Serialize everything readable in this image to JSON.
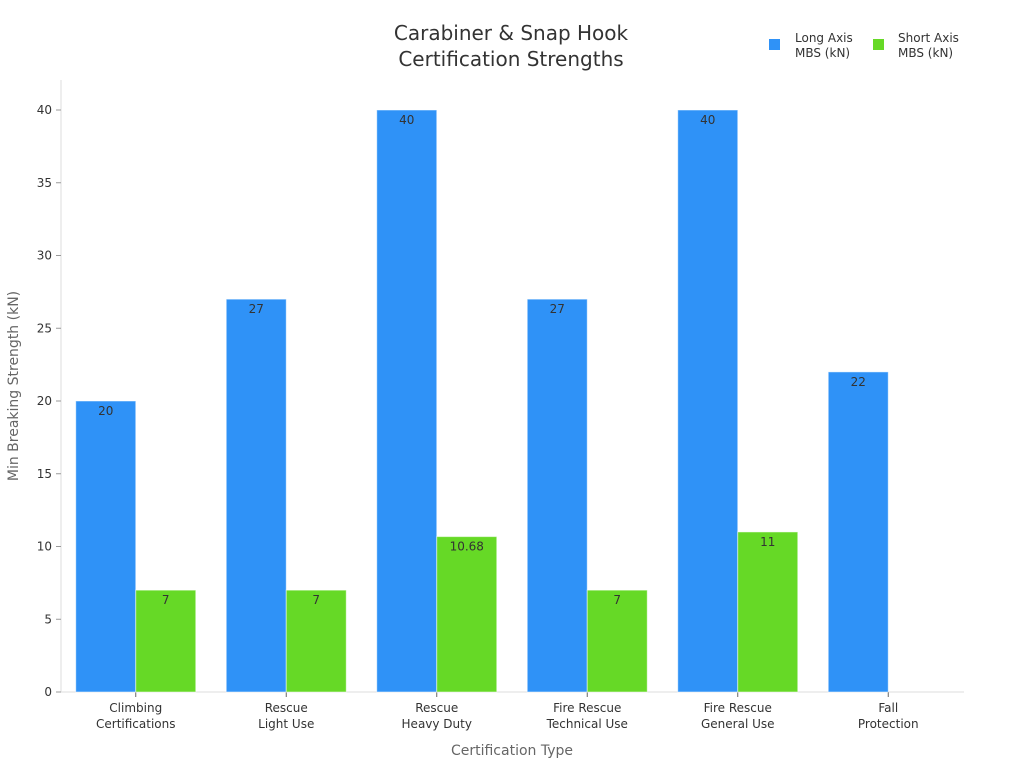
{
  "chart_data": {
    "type": "bar",
    "title": [
      "Carabiner & Snap Hook",
      "Certification Strengths"
    ],
    "xlabel": "Certification Type",
    "ylabel": "Min Breaking Strength (kN)",
    "ylim": [
      0,
      42
    ],
    "yticks": [
      0,
      5,
      10,
      15,
      20,
      25,
      30,
      35,
      40
    ],
    "grid": false,
    "legend_position": "top-right",
    "categories": [
      [
        "Climbing",
        "Certifications"
      ],
      [
        "Rescue",
        "Light Use"
      ],
      [
        "Rescue",
        "Heavy Duty"
      ],
      [
        "Fire Rescue",
        "Technical Use"
      ],
      [
        "Fire Rescue",
        "General Use"
      ],
      [
        "Fall",
        "Protection"
      ]
    ],
    "series": [
      {
        "name": [
          "Long Axis",
          "MBS (kN)"
        ],
        "color": "#2f92f7",
        "values": [
          20,
          27,
          40,
          27,
          40,
          22
        ],
        "labels": [
          "20",
          "27",
          "40",
          "27",
          "40",
          "22"
        ]
      },
      {
        "name": [
          "Short Axis",
          "MBS (kN)"
        ],
        "color": "#66d926",
        "values": [
          7,
          7,
          10.68,
          7,
          11,
          null
        ],
        "labels": [
          "7",
          "7",
          "10.68",
          "7",
          "11",
          null
        ]
      }
    ]
  }
}
